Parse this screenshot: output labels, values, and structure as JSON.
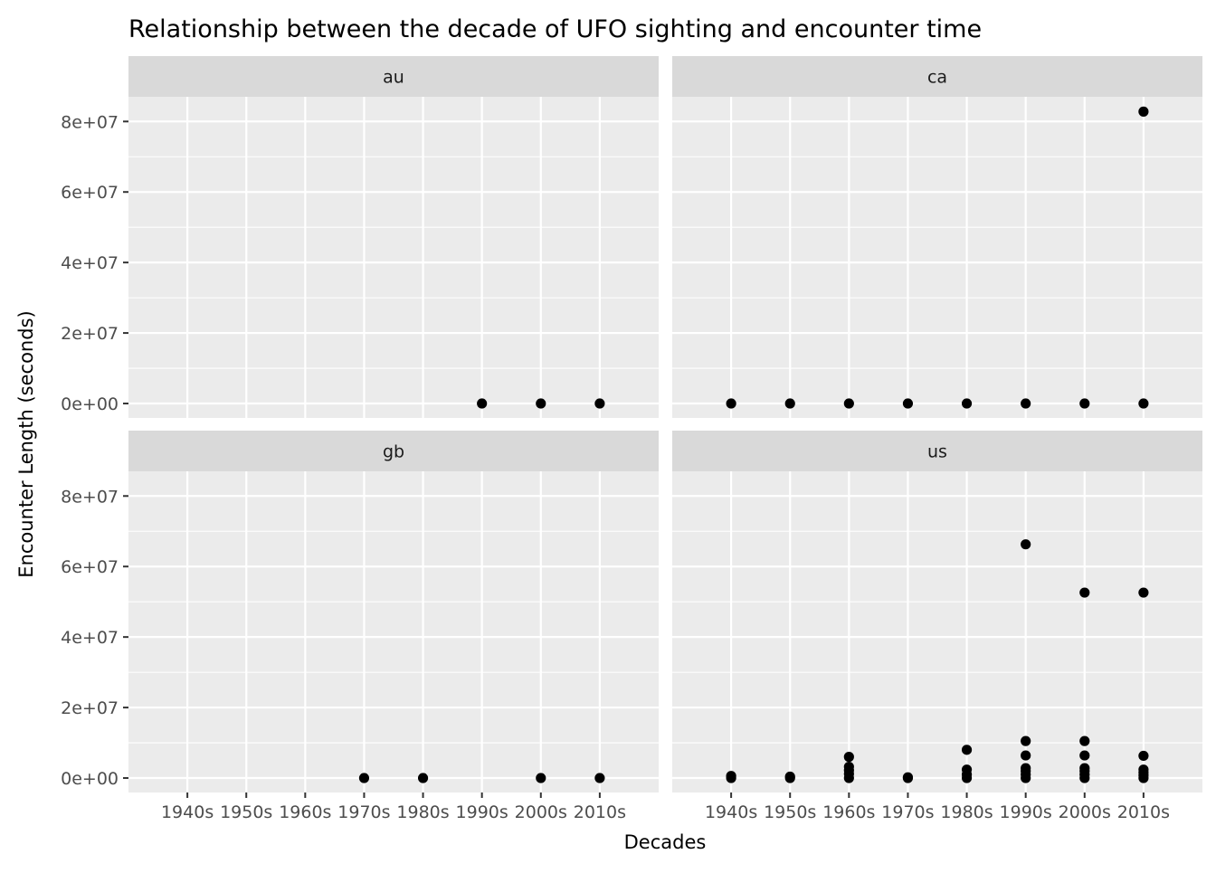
{
  "chart_data": {
    "type": "scatter",
    "title": "Relationship between the decade of UFO sighting and encounter time",
    "xlabel": "Decades",
    "ylabel": "Encounter Length (seconds)",
    "categories": [
      "1940s",
      "1950s",
      "1960s",
      "1970s",
      "1980s",
      "1990s",
      "2000s",
      "2010s"
    ],
    "y_ticks": [
      {
        "value": 0,
        "label": "0e+00"
      },
      {
        "value": 20000000,
        "label": "2e+07"
      },
      {
        "value": 40000000,
        "label": "4e+07"
      },
      {
        "value": 60000000,
        "label": "6e+07"
      },
      {
        "value": 80000000,
        "label": "8e+07"
      }
    ],
    "ylim": [
      -4100000,
      87000000
    ],
    "grid": true,
    "facets": [
      {
        "label": "au",
        "points": [
          {
            "x": "1990s",
            "y": 0
          },
          {
            "x": "2000s",
            "y": 0
          },
          {
            "x": "2010s",
            "y": 0
          }
        ]
      },
      {
        "label": "ca",
        "points": [
          {
            "x": "1940s",
            "y": 0
          },
          {
            "x": "1950s",
            "y": 0
          },
          {
            "x": "1960s",
            "y": 0
          },
          {
            "x": "1970s",
            "y": 0
          },
          {
            "x": "1980s",
            "y": 0
          },
          {
            "x": "1990s",
            "y": 0
          },
          {
            "x": "2000s",
            "y": 0
          },
          {
            "x": "2010s",
            "y": 0
          },
          {
            "x": "2010s",
            "y": 82800000
          }
        ]
      },
      {
        "label": "gb",
        "points": [
          {
            "x": "1970s",
            "y": 0
          },
          {
            "x": "1980s",
            "y": 0
          },
          {
            "x": "2000s",
            "y": 0
          },
          {
            "x": "2010s",
            "y": 0
          }
        ]
      },
      {
        "label": "us",
        "points": [
          {
            "x": "1940s",
            "y": 0
          },
          {
            "x": "1940s",
            "y": 600000
          },
          {
            "x": "1950s",
            "y": 0
          },
          {
            "x": "1950s",
            "y": 400000
          },
          {
            "x": "1960s",
            "y": 0
          },
          {
            "x": "1960s",
            "y": 1200000
          },
          {
            "x": "1960s",
            "y": 2200000
          },
          {
            "x": "1960s",
            "y": 3200000
          },
          {
            "x": "1960s",
            "y": 6000000
          },
          {
            "x": "1970s",
            "y": 0
          },
          {
            "x": "1970s",
            "y": 200000
          },
          {
            "x": "1980s",
            "y": 0
          },
          {
            "x": "1980s",
            "y": 1000000
          },
          {
            "x": "1980s",
            "y": 2400000
          },
          {
            "x": "1980s",
            "y": 8000000
          },
          {
            "x": "1990s",
            "y": 0
          },
          {
            "x": "1990s",
            "y": 1000000
          },
          {
            "x": "1990s",
            "y": 2000000
          },
          {
            "x": "1990s",
            "y": 2800000
          },
          {
            "x": "1990s",
            "y": 6400000
          },
          {
            "x": "1990s",
            "y": 10500000
          },
          {
            "x": "1990s",
            "y": 66300000
          },
          {
            "x": "2000s",
            "y": 0
          },
          {
            "x": "2000s",
            "y": 1000000
          },
          {
            "x": "2000s",
            "y": 2000000
          },
          {
            "x": "2000s",
            "y": 2800000
          },
          {
            "x": "2000s",
            "y": 6400000
          },
          {
            "x": "2000s",
            "y": 10500000
          },
          {
            "x": "2000s",
            "y": 52600000
          },
          {
            "x": "2010s",
            "y": 0
          },
          {
            "x": "2010s",
            "y": 800000
          },
          {
            "x": "2010s",
            "y": 1600000
          },
          {
            "x": "2010s",
            "y": 2400000
          },
          {
            "x": "2010s",
            "y": 6300000
          },
          {
            "x": "2010s",
            "y": 52600000
          }
        ]
      }
    ]
  }
}
